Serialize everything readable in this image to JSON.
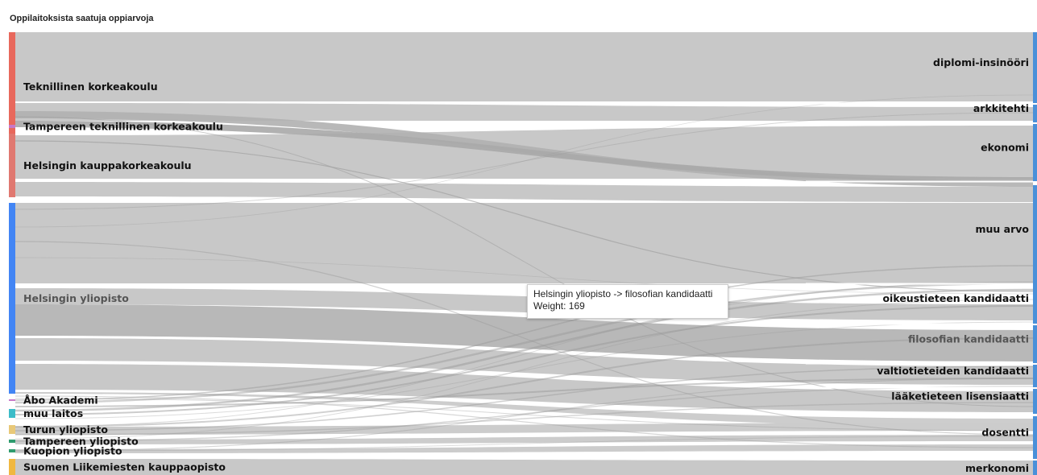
{
  "title": "Oppilaitoksista saatuja oppiarvoja",
  "tooltip": {
    "line1": "Helsingin yliopisto -> filosofian kandidaatti",
    "line2": "Weight: 169"
  },
  "chart_data": {
    "type": "sankey",
    "title": "Oppilaitoksista saatuja oppiarvoja",
    "sources": [
      {
        "name": "Teknillinen korkeakoulu",
        "color": "#e8685c"
      },
      {
        "name": "Tampereen teknillinen korkeakoulu",
        "color": "#c878c8"
      },
      {
        "name": "Helsingin kauppakorkeakoulu",
        "color": "#e07870"
      },
      {
        "name": "Helsingin yliopisto",
        "color": "#4285f4"
      },
      {
        "name": "Åbo Akademi",
        "color": "#c878c8"
      },
      {
        "name": "muu laitos",
        "color": "#3cbcc8"
      },
      {
        "name": "Turun yliopisto",
        "color": "#e8c878"
      },
      {
        "name": "Tampereen yliopisto",
        "color": "#2e9b6e"
      },
      {
        "name": "Kuopion yliopisto",
        "color": "#2e9b6e"
      },
      {
        "name": "Suomen Liikemiesten kauppaopisto",
        "color": "#f0b840"
      }
    ],
    "targets": [
      {
        "name": "diplomi-insinööri"
      },
      {
        "name": "arkkitehti"
      },
      {
        "name": "ekonomi"
      },
      {
        "name": "muu arvo"
      },
      {
        "name": "oikeustieteen kandidaatti"
      },
      {
        "name": "filosofian kandidaatti"
      },
      {
        "name": "valtiotieteiden kandidaatti"
      },
      {
        "name": "lääketieteen lisensiaatti"
      },
      {
        "name": "dosentti"
      },
      {
        "name": "merkonomi"
      }
    ],
    "links": [
      {
        "source": "Helsingin yliopisto",
        "target": "filosofian kandidaatti",
        "value": 169
      }
    ]
  }
}
